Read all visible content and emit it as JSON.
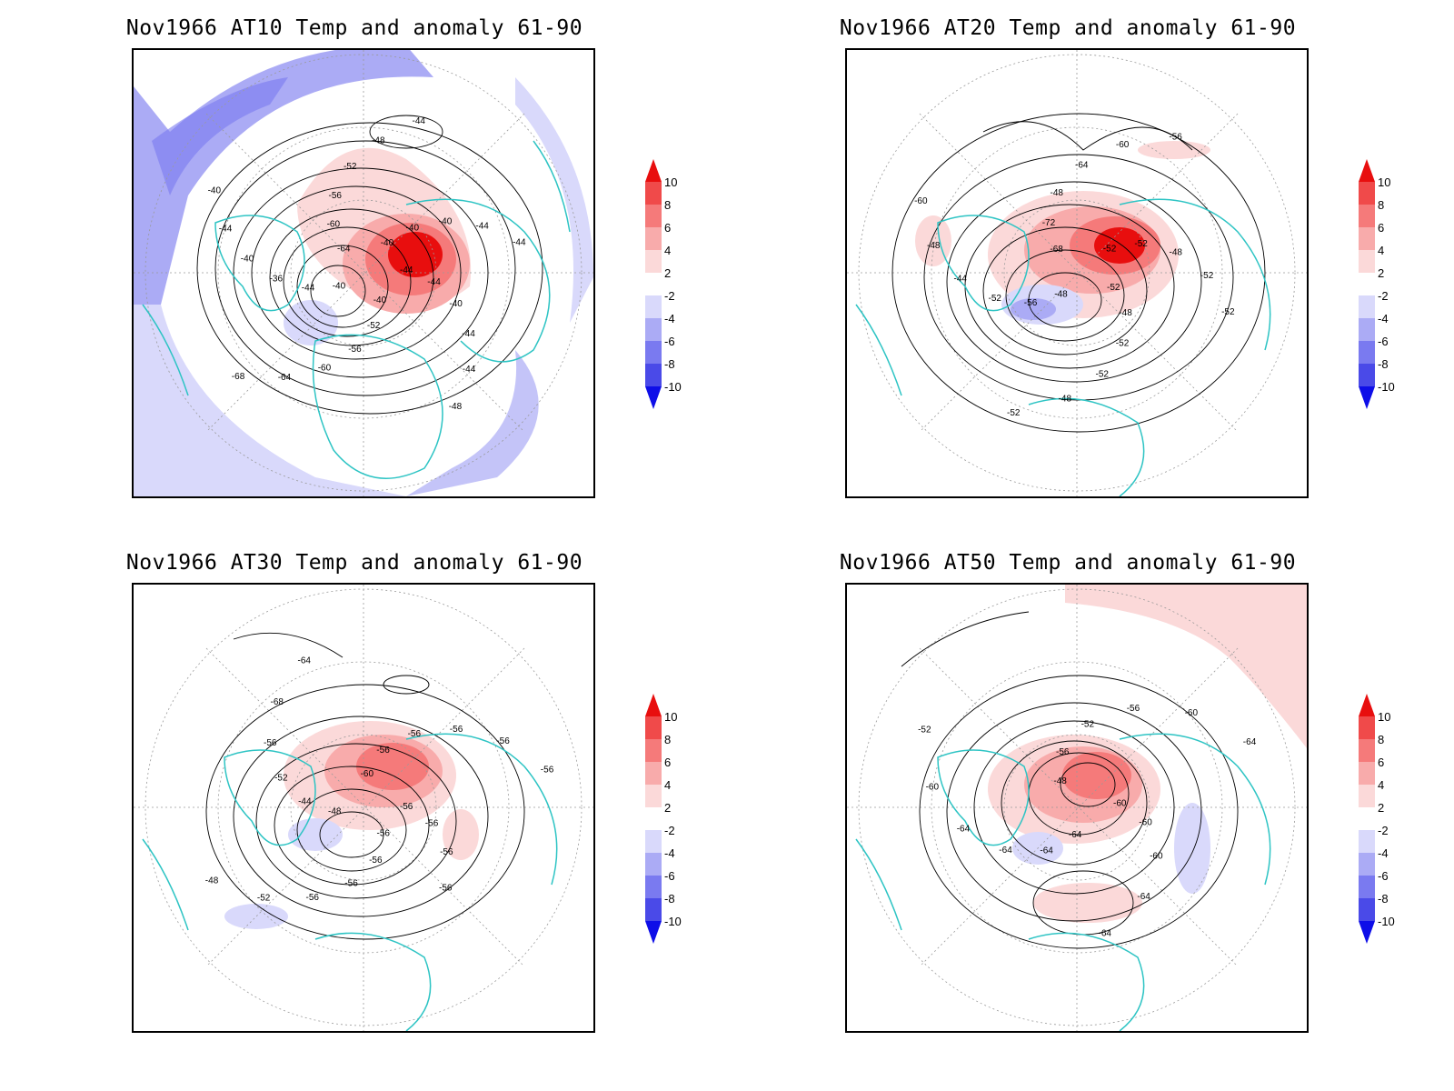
{
  "panels": [
    {
      "title": "Nov1966 AT10 Temp and anomaly 61-90",
      "contour_labels": [
        "-44",
        "-44",
        "-40",
        "-44",
        "-44",
        "-48",
        "-40",
        "-52",
        "-56",
        "-60",
        "-64",
        "-68",
        "-40",
        "-44",
        "-36",
        "-40",
        "-44",
        "-40",
        "-64",
        "-60",
        "-56",
        "-52",
        "-48",
        "-44",
        "-40",
        "-40",
        "-40",
        "-44",
        "-44"
      ]
    },
    {
      "title": "Nov1966 AT20 Temp and anomaly 61-90",
      "contour_labels": [
        "-52",
        "-48",
        "-52",
        "-52",
        "-48",
        "-52",
        "-48",
        "-56",
        "-52",
        "-44",
        "-48",
        "-60",
        "-68",
        "-72",
        "-48",
        "-64",
        "-60",
        "-56",
        "-52",
        "-52",
        "-48",
        "-52",
        "-52"
      ]
    },
    {
      "title": "Nov1966 AT30 Temp and anomaly 61-90",
      "contour_labels": [
        "-56",
        "-56",
        "-56",
        "-56",
        "-52",
        "-48",
        "-48",
        "-44",
        "-52",
        "-56",
        "-68",
        "-64",
        "-60",
        "-56",
        "-56",
        "-56",
        "-56",
        "-56",
        "-56",
        "-56",
        "-56",
        "-56"
      ]
    },
    {
      "title": "Nov1966 AT50 Temp and anomaly 61-90",
      "contour_labels": [
        "-64",
        "-64",
        "-64",
        "-64",
        "-60",
        "-52",
        "-48",
        "-56",
        "-52",
        "-56",
        "-60",
        "-64",
        "-60",
        "-60",
        "-60",
        "-64",
        "-64"
      ]
    }
  ],
  "colorbar": {
    "labels": [
      "10",
      "8",
      "6",
      "4",
      "2",
      "-2",
      "-4",
      "-6",
      "-8",
      "-10"
    ],
    "colors": [
      "#e80e0e",
      "#f04a4a",
      "#f57a7a",
      "#f8abab",
      "#fbd9d9",
      "#ffffff",
      "#d9d9fb",
      "#ababf5",
      "#7a7af0",
      "#4a4ae8",
      "#0e0ee8"
    ]
  },
  "colors": {
    "coastline": "#2ec4c4",
    "contour": "#000000",
    "grid": "#9a9a9a"
  }
}
